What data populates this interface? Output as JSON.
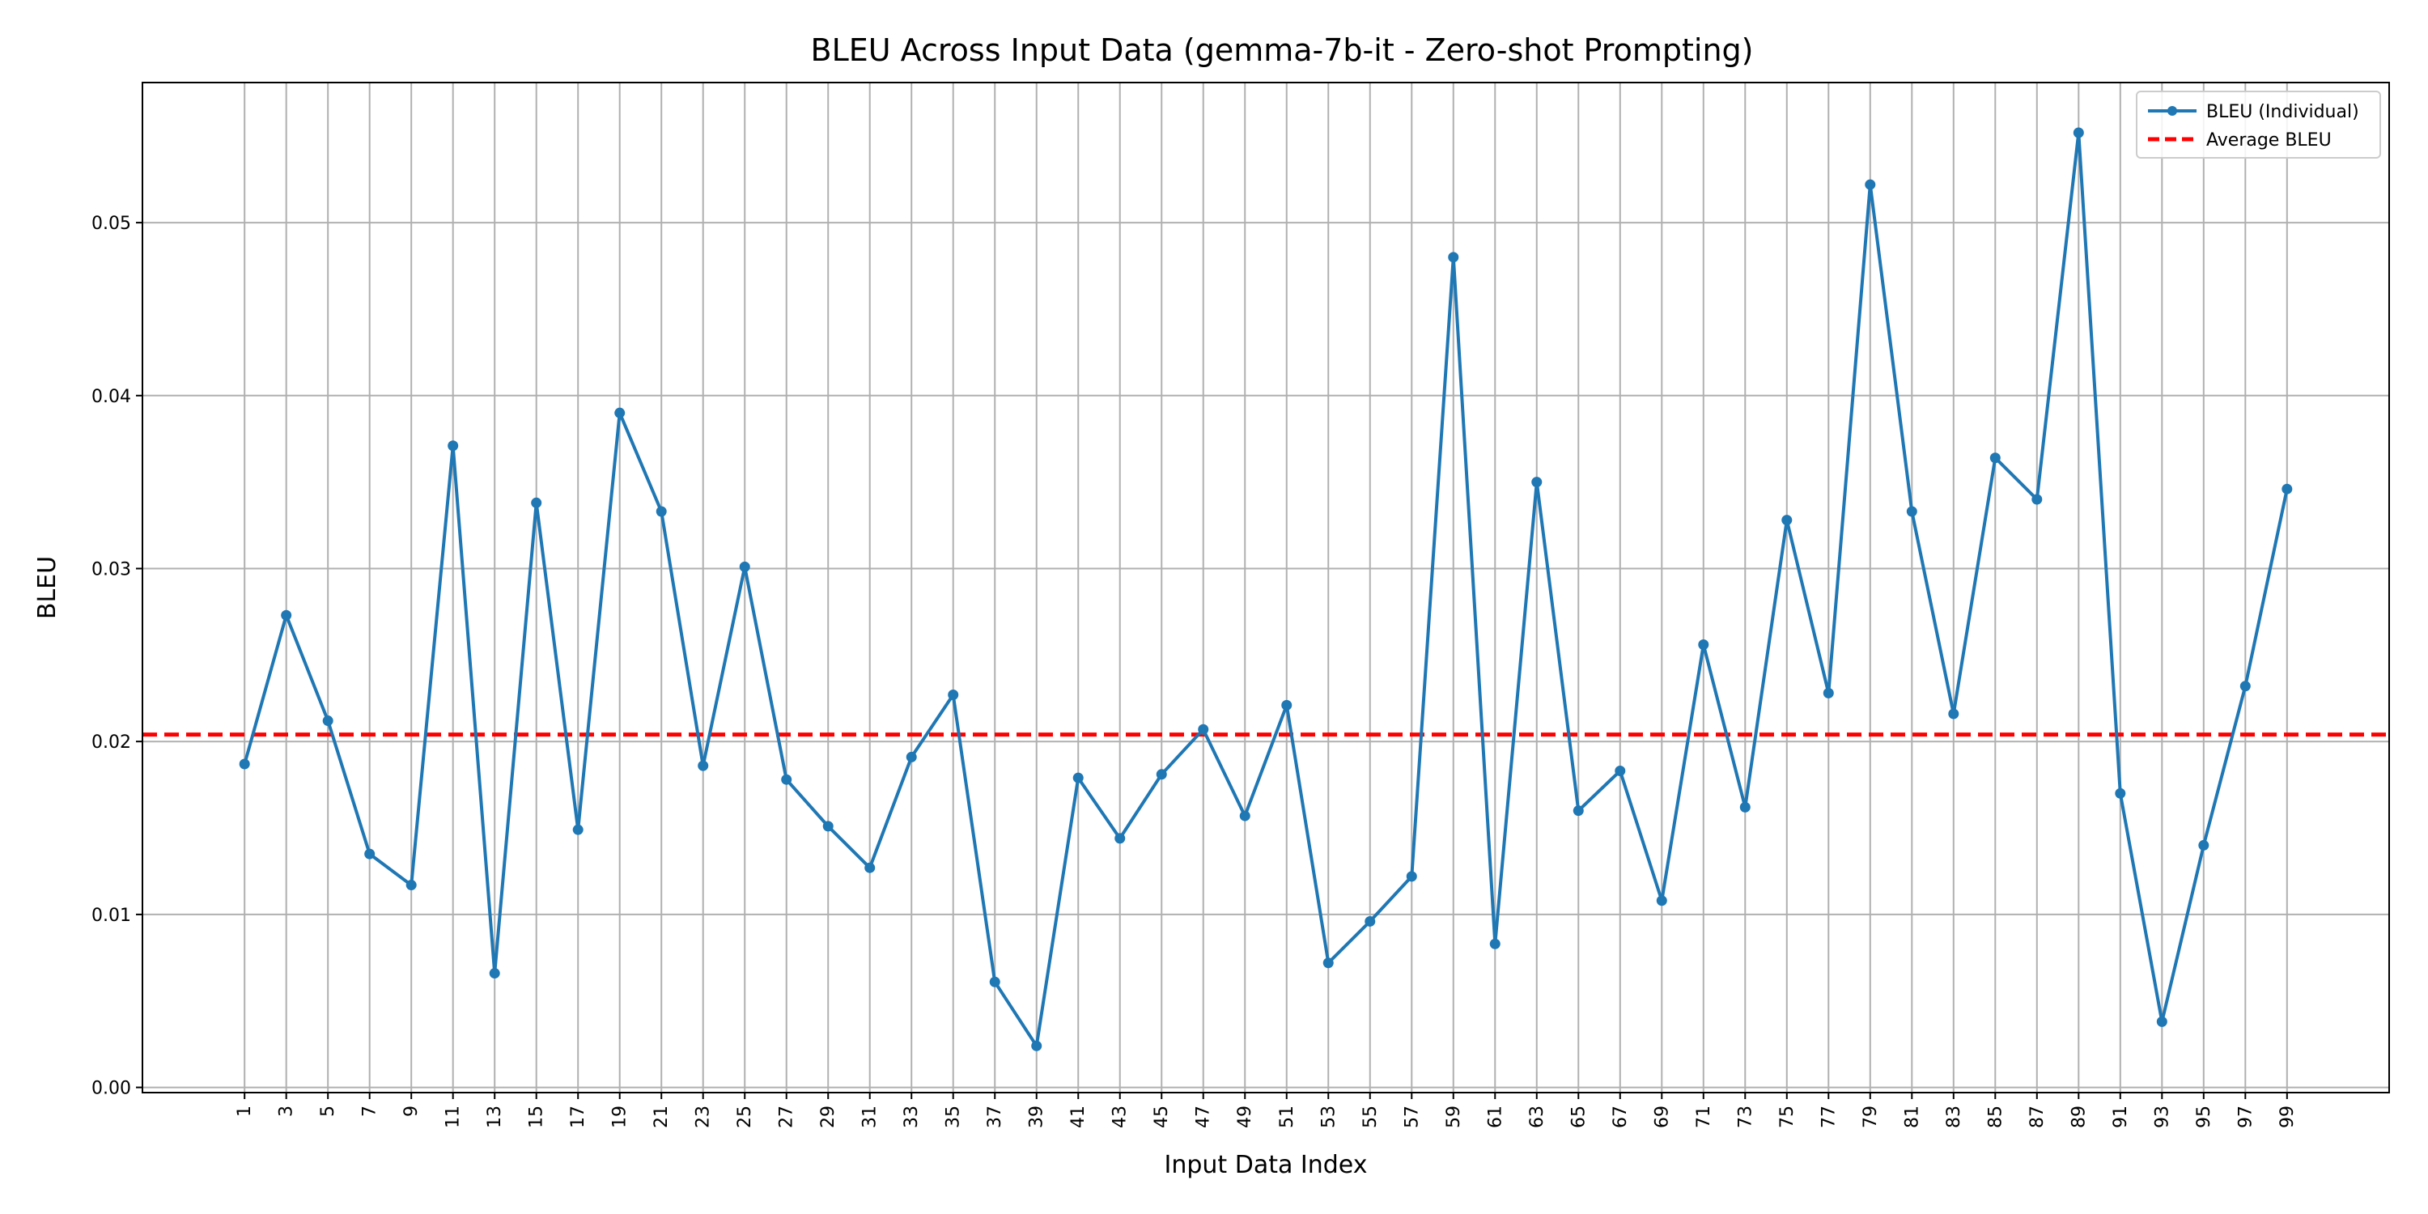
{
  "chart_data": {
    "type": "line",
    "title": "BLEU Across Input Data (gemma-7b-it - Zero-shot Prompting)",
    "xlabel": "Input Data Index",
    "ylabel": "BLEU",
    "x": [
      1,
      3,
      5,
      7,
      9,
      11,
      13,
      15,
      17,
      19,
      21,
      23,
      25,
      27,
      29,
      31,
      33,
      35,
      37,
      39,
      41,
      43,
      45,
      47,
      49,
      51,
      53,
      55,
      57,
      59,
      61,
      63,
      65,
      67,
      69,
      71,
      73,
      75,
      77,
      79,
      81,
      83,
      85,
      87,
      89,
      91,
      93,
      95,
      97,
      99
    ],
    "x_tick_labels": [
      "1",
      "3",
      "5",
      "7",
      "9",
      "11",
      "13",
      "15",
      "17",
      "19",
      "21",
      "23",
      "25",
      "27",
      "29",
      "31",
      "33",
      "35",
      "37",
      "39",
      "41",
      "43",
      "45",
      "47",
      "49",
      "51",
      "53",
      "55",
      "57",
      "59",
      "61",
      "63",
      "65",
      "67",
      "69",
      "71",
      "73",
      "75",
      "77",
      "79",
      "81",
      "83",
      "85",
      "87",
      "89",
      "91",
      "93",
      "95",
      "97",
      "99"
    ],
    "xlim": [
      -3.9,
      103.9
    ],
    "ylim": [
      -0.0003,
      0.0581
    ],
    "y_ticks": [
      0.0,
      0.01,
      0.02,
      0.03,
      0.04,
      0.05
    ],
    "y_tick_labels": [
      "0.00",
      "0.01",
      "0.02",
      "0.03",
      "0.04",
      "0.05"
    ],
    "grid": true,
    "legend_position": "top-right",
    "series": [
      {
        "name": "BLEU (Individual)",
        "style": "solid line with circle markers",
        "color": "#1f77b4",
        "values": [
          0.0187,
          0.0273,
          0.0212,
          0.0135,
          0.0117,
          0.0371,
          0.0066,
          0.0338,
          0.0149,
          0.039,
          0.0333,
          0.0186,
          0.0301,
          0.0178,
          0.0151,
          0.0127,
          0.0191,
          0.0227,
          0.0061,
          0.0024,
          0.0179,
          0.0144,
          0.0181,
          0.0207,
          0.0157,
          0.0221,
          0.0072,
          0.0096,
          0.0122,
          0.048,
          0.0083,
          0.035,
          0.016,
          0.0183,
          0.0108,
          0.0256,
          0.0162,
          0.0328,
          0.0228,
          0.0522,
          0.0333,
          0.0216,
          0.0364,
          0.034,
          0.0552,
          0.017,
          0.0038,
          0.014,
          0.0232,
          0.0346
        ]
      },
      {
        "name": "Average BLEU",
        "style": "dashed horizontal line",
        "color": "#ff0000",
        "value": 0.0204
      }
    ]
  },
  "colors": {
    "series_line": "#1f77b4",
    "average_line": "#ff0000",
    "grid": "#b0b0b0",
    "axes": "#000000"
  }
}
